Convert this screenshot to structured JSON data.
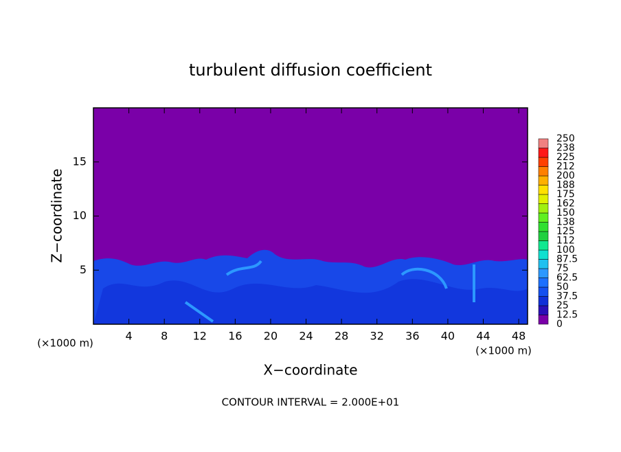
{
  "chart_data": {
    "type": "contour",
    "title": "turbulent diffusion coefficient",
    "xlabel": "X−coordinate",
    "ylabel": "Z−coordinate",
    "x_unit": "(×1000 m)",
    "y_unit": "(×1000 m)",
    "note": "CONTOUR INTERVAL = 2.000E+01",
    "xlim": [
      0,
      49
    ],
    "ylim": [
      0,
      20
    ],
    "xticks": [
      4,
      8,
      12,
      16,
      20,
      24,
      28,
      32,
      36,
      40,
      44,
      48
    ],
    "yticks": [
      5,
      10,
      15
    ],
    "colorbar": {
      "levels": [
        0,
        12.5,
        25,
        37.5,
        50,
        62.5,
        75,
        87.5,
        100,
        112,
        125,
        138,
        150,
        162,
        175,
        188,
        200,
        212,
        225,
        238,
        250
      ],
      "colors": [
        "#7a00a8",
        "#2a10b8",
        "#1030d8",
        "#1450f0",
        "#1c70ff",
        "#2c98ff",
        "#20c0f0",
        "#10e0d0",
        "#10e890",
        "#20d040",
        "#30e030",
        "#60f020",
        "#a0f010",
        "#e0f000",
        "#ffe000",
        "#ffb000",
        "#ff8000",
        "#ff4000",
        "#ff1818",
        "#f08080"
      ]
    }
  }
}
